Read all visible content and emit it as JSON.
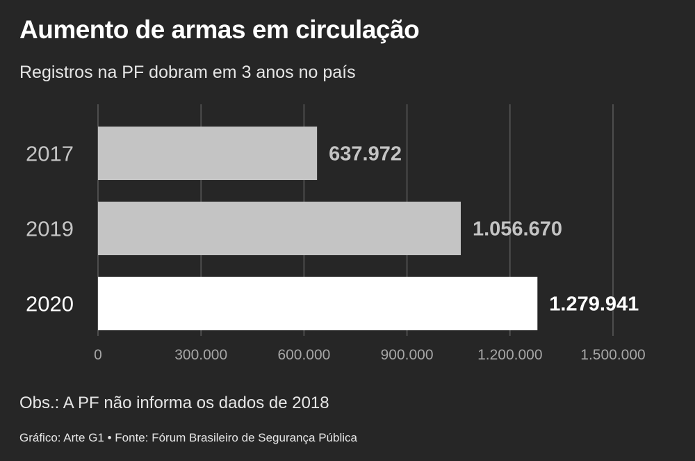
{
  "header": {
    "title": "Aumento de armas em circulação",
    "subtitle": "Registros na PF dobram em 3 anos no país"
  },
  "footer": {
    "note": "Obs.: A PF não informa os dados de 2018",
    "source": "Gráfico: Arte G1 • Fonte: Fórum Brasileiro de Segurança Pública"
  },
  "colors": {
    "background": "#262626",
    "bar_default": "#c4c4c4",
    "bar_highlight": "#ffffff",
    "label_default": "#c4c4c4",
    "label_highlight": "#ffffff",
    "grid": "#5a5a5a",
    "tick_text": "#a6a6a6"
  },
  "chart_data": {
    "type": "bar",
    "orientation": "horizontal",
    "categories": [
      "2017",
      "2019",
      "2020"
    ],
    "values": [
      637972,
      1056670,
      1279941
    ],
    "value_labels": [
      "637.972",
      "1.056.670",
      "1.279.941"
    ],
    "highlight_index": 2,
    "xlim": [
      0,
      1500000
    ],
    "xticks": [
      0,
      300000,
      600000,
      900000,
      1200000,
      1500000
    ],
    "xtick_labels": [
      "0",
      "300.000",
      "600.000",
      "900.000",
      "1.200.000",
      "1.500.000"
    ],
    "grid": true
  }
}
